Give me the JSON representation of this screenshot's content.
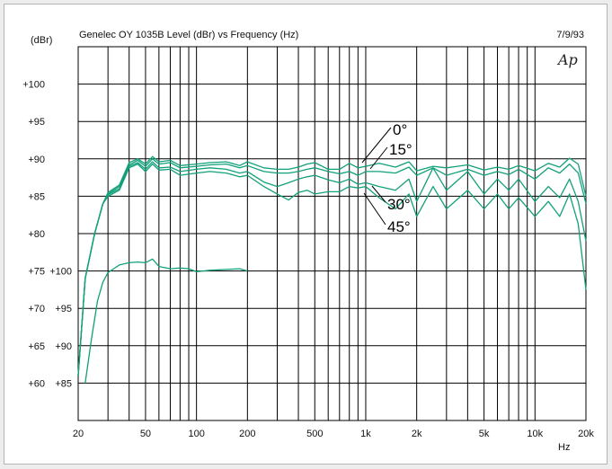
{
  "chart_data": {
    "type": "line",
    "title": "Genelec OY 1035B Level (dBr) vs Frequency (Hz)",
    "date": "7/9/93",
    "logo": "Ap",
    "ylabel": "(dBr)",
    "xlabel": "Hz",
    "x_scale": "log",
    "xlim": [
      20,
      20000
    ],
    "ylim": [
      55,
      105
    ],
    "x_tick_labels": [
      "20",
      "50",
      "100",
      "200",
      "500",
      "1k",
      "2k",
      "5k",
      "10k",
      "20k"
    ],
    "x_tick_values": [
      20,
      50,
      100,
      200,
      500,
      1000,
      2000,
      5000,
      10000,
      20000
    ],
    "y_tick_values": [
      100,
      95,
      90,
      85,
      80,
      75,
      70,
      65,
      60
    ],
    "y_tick_labels": [
      "+100",
      "+95",
      "+90",
      "+85",
      "+80",
      "+75",
      "+70",
      "+65",
      "+60"
    ],
    "y2_tick_values": [
      75,
      70,
      65,
      60
    ],
    "y2_tick_labels": [
      "+100",
      "+95",
      "+90",
      "+85"
    ],
    "grid": true,
    "line_color": "#12a07a",
    "annotations": [
      "0°",
      "15°",
      "30°",
      "45°"
    ],
    "series": [
      {
        "name": "0°",
        "axis": "left",
        "x": [
          20,
          22,
          25,
          28,
          30,
          35,
          40,
          45,
          50,
          55,
          60,
          70,
          80,
          100,
          120,
          150,
          180,
          200,
          250,
          300,
          350,
          400,
          450,
          500,
          600,
          700,
          800,
          900,
          1000,
          1200,
          1500,
          1800,
          2000,
          2500,
          3000,
          4000,
          5000,
          6000,
          7000,
          8000,
          10000,
          12000,
          14000,
          16000,
          18000,
          20000
        ],
        "y": [
          61,
          74,
          80,
          84,
          85.5,
          86.5,
          89.5,
          90,
          89.3,
          90.3,
          89.6,
          89.8,
          89.1,
          89.3,
          89.5,
          89.6,
          89.1,
          89.6,
          88.8,
          88.6,
          88.6,
          88.9,
          89.3,
          89.5,
          88.6,
          88.6,
          89.4,
          88.8,
          89,
          89.4,
          88.9,
          89.6,
          88.4,
          89,
          88.8,
          89.2,
          88.5,
          88.9,
          88.6,
          89.1,
          88.4,
          89.4,
          88.9,
          90.1,
          89.3,
          85
        ]
      },
      {
        "name": "15°",
        "axis": "left",
        "x": [
          20,
          22,
          25,
          28,
          30,
          35,
          40,
          45,
          50,
          55,
          60,
          70,
          80,
          100,
          120,
          150,
          180,
          200,
          250,
          300,
          350,
          400,
          450,
          500,
          600,
          700,
          800,
          900,
          1000,
          1200,
          1500,
          1800,
          2000,
          2500,
          3000,
          4000,
          5000,
          6000,
          7000,
          8000,
          10000,
          12000,
          14000,
          16000,
          18000,
          20000
        ],
        "y": [
          61,
          74,
          80,
          84,
          85.3,
          86.3,
          89.2,
          89.8,
          89,
          90,
          89.3,
          89.5,
          88.8,
          89,
          89.2,
          89.3,
          88.8,
          89.1,
          88.3,
          88.1,
          88.1,
          88.3,
          88.6,
          88.8,
          88.3,
          88,
          88.3,
          87.8,
          88.3,
          88.3,
          88.1,
          88.9,
          87.8,
          88.8,
          87.8,
          88.6,
          87.8,
          88.3,
          87.9,
          88.6,
          87.3,
          88.8,
          88.1,
          89.3,
          88.1,
          84
        ]
      },
      {
        "name": "30°",
        "axis": "left",
        "x": [
          20,
          22,
          25,
          28,
          30,
          35,
          40,
          45,
          50,
          55,
          60,
          70,
          80,
          100,
          120,
          150,
          180,
          200,
          250,
          300,
          350,
          400,
          450,
          500,
          600,
          700,
          800,
          900,
          1000,
          1200,
          1500,
          1800,
          2000,
          2500,
          3000,
          4000,
          5000,
          6000,
          7000,
          8000,
          10000,
          12000,
          14000,
          16000,
          18000,
          20000
        ],
        "y": [
          61,
          74,
          80,
          84,
          85.2,
          86,
          89,
          89.5,
          88.6,
          89.6,
          88.8,
          88.9,
          88.3,
          88.6,
          88.8,
          88.6,
          88.1,
          88.3,
          86.9,
          86.3,
          86.8,
          87.3,
          87.6,
          87.8,
          87.2,
          86.8,
          87.3,
          86.6,
          86.8,
          86.3,
          85.8,
          87.3,
          84.3,
          88.8,
          85.8,
          88.3,
          85.3,
          87.3,
          85.8,
          87.3,
          84.3,
          86.3,
          84.8,
          87.3,
          84.3,
          79
        ]
      },
      {
        "name": "45°",
        "axis": "left",
        "x": [
          20,
          22,
          25,
          28,
          30,
          35,
          40,
          45,
          50,
          55,
          60,
          70,
          80,
          100,
          120,
          150,
          180,
          200,
          250,
          300,
          350,
          400,
          450,
          500,
          600,
          700,
          800,
          900,
          1000,
          1200,
          1500,
          1800,
          2000,
          2500,
          3000,
          4000,
          5000,
          6000,
          7000,
          8000,
          10000,
          12000,
          14000,
          16000,
          18000,
          20000
        ],
        "y": [
          61,
          74,
          80,
          84,
          85,
          85.8,
          88.8,
          89.3,
          88.3,
          89.3,
          88.5,
          88.6,
          87.8,
          88.1,
          88.3,
          88.1,
          87.6,
          87.8,
          86.3,
          85.3,
          84.5,
          85.5,
          85.8,
          85.3,
          85.6,
          85.6,
          86.3,
          86.1,
          86.3,
          84.8,
          83.3,
          85.3,
          82.3,
          86.3,
          83.3,
          85.8,
          83.3,
          85.3,
          83.3,
          84.8,
          82.3,
          84.3,
          82.3,
          85.3,
          81.3,
          72.5
        ]
      },
      {
        "name": "",
        "axis": "right",
        "x": [
          22,
          24,
          26,
          28,
          30,
          35,
          40,
          45,
          50,
          55,
          60,
          70,
          80,
          90,
          100,
          120,
          150,
          180,
          200
        ],
        "y": [
          60,
          66,
          71,
          73.5,
          74.8,
          75.8,
          76.1,
          76.2,
          76.1,
          76.6,
          75.6,
          75.3,
          75.4,
          75.3,
          74.9,
          75.1,
          75.2,
          75.3,
          75
        ]
      }
    ]
  }
}
